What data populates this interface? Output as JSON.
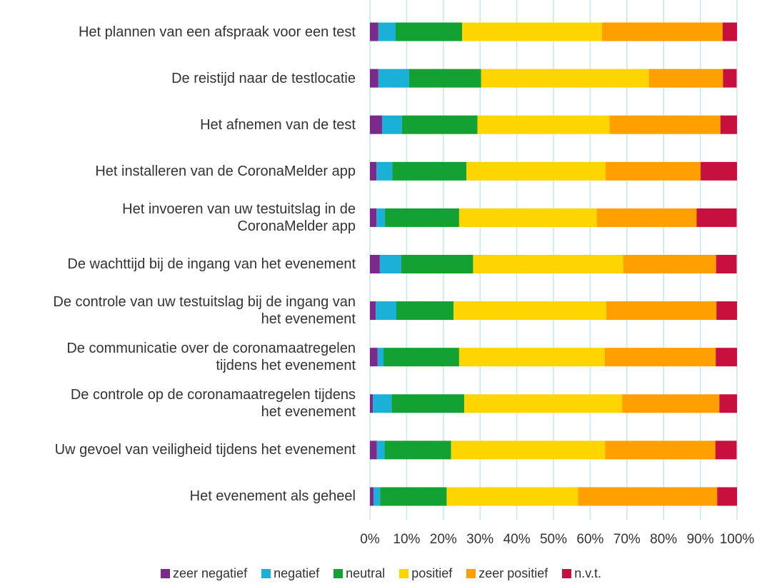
{
  "chart_data": {
    "type": "stacked-barh",
    "categories": [
      "Het plannen van een afspraak voor een test",
      "De reistijd naar de testlocatie",
      "Het afnemen van de test",
      "Het installeren van de CoronaMelder app",
      "Het invoeren van uw testuitslag in de\nCoronaMelder app",
      "De wachttijd bij de ingang van het evenement",
      "De controle van uw testuitslag bij de ingang van\nhet evenement",
      "De communicatie over de coronamaatregelen\ntijdens het evenement",
      "De controle op de coronamaatregelen tijdens\nhet evenement",
      "Uw gevoel van veiligheid tijdens het evenement",
      "Het evenement als geheel"
    ],
    "series": [
      {
        "name": "zeer negatief",
        "color": "#7b2a8c",
        "values": [
          2.3,
          2.3,
          3.3,
          1.8,
          1.8,
          2.7,
          1.6,
          2.1,
          0.8,
          1.9,
          1.0
        ]
      },
      {
        "name": "negatief",
        "color": "#1ab0d8",
        "values": [
          4.7,
          8.4,
          5.4,
          4.3,
          2.3,
          5.8,
          5.6,
          1.6,
          5.1,
          2.1,
          1.8
        ]
      },
      {
        "name": "neutral",
        "color": "#12a132",
        "values": [
          18.1,
          19.6,
          20.6,
          20.2,
          20.2,
          19.6,
          15.6,
          20.6,
          19.8,
          18.1,
          18.1
        ]
      },
      {
        "name": "positief",
        "color": "#ffd500",
        "values": [
          38.1,
          45.7,
          36.0,
          37.9,
          37.5,
          40.9,
          41.6,
          39.7,
          43.0,
          42.0,
          35.8
        ]
      },
      {
        "name": "zeer positief",
        "color": "#ff9f00",
        "values": [
          32.9,
          20.2,
          30.2,
          25.9,
          27.2,
          25.3,
          30.0,
          30.2,
          26.5,
          30.0,
          37.9
        ]
      },
      {
        "name": "n.v.t.",
        "color": "#c8103e",
        "values": [
          3.9,
          3.7,
          4.5,
          9.9,
          10.9,
          5.6,
          5.6,
          5.8,
          4.8,
          5.8,
          5.4
        ]
      }
    ],
    "xlim": [
      0,
      100
    ],
    "xticks": [
      {
        "value": 0,
        "label": "0%"
      },
      {
        "value": 10,
        "label": "10%"
      },
      {
        "value": 20,
        "label": "20%"
      },
      {
        "value": 30,
        "label": "30%"
      },
      {
        "value": 40,
        "label": "40%"
      },
      {
        "value": 50,
        "label": "50%"
      },
      {
        "value": 60,
        "label": "60%"
      },
      {
        "value": 70,
        "label": "70%"
      },
      {
        "value": 80,
        "label": "80%"
      },
      {
        "value": 90,
        "label": "90%"
      },
      {
        "value": 100,
        "label": "100%"
      }
    ],
    "grid": true,
    "legend": "bottom"
  }
}
